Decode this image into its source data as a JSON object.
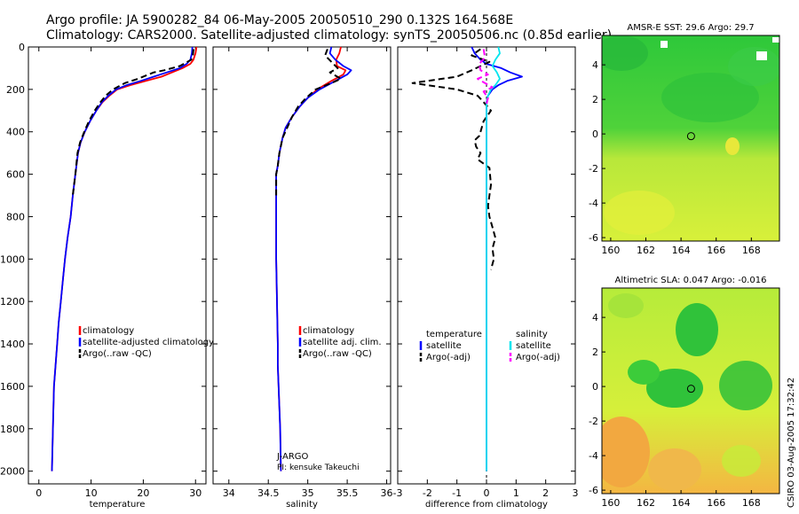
{
  "header": {
    "line1": "Argo profile: JA 5900282_84 06-May-2005 20050510_290 0.132S 164.568E",
    "line2": "Climatology: CARS2000. Satellite-adjusted climatology: synTS_20050506.nc (0.85d earlier)"
  },
  "colors": {
    "climatology": "#ff0000",
    "satellite": "#0000ff",
    "argo": "#000000",
    "salinity": "#00e5ee",
    "salinity_argo": "#ff00ff"
  },
  "footer_stamp": "CSIRO 03-Aug-2005 17:32:42",
  "chart_data": [
    {
      "type": "line",
      "id": "temperature",
      "xlabel": "temperature",
      "xlim": [
        -2,
        32
      ],
      "ylim": [
        2060,
        0
      ],
      "xticks": [
        0,
        10,
        20,
        30
      ],
      "yticks": [
        0,
        200,
        400,
        600,
        800,
        1000,
        1200,
        1400,
        1600,
        1800,
        2000
      ],
      "legend": [
        "climatology",
        "satellite-adjusted climatology",
        "Argo(..raw  -QC)"
      ],
      "series": [
        {
          "name": "climatology",
          "color": "#ff0000",
          "dash": false,
          "x": [
            30.2,
            30.0,
            29.6,
            29.0,
            27.5,
            25.5,
            23.5,
            20.5,
            17.5,
            15.0,
            13.5,
            12.2,
            11.0,
            9.8,
            8.8,
            8.0,
            7.5,
            7.0,
            6.5,
            6.1,
            5.5,
            5.0,
            4.6,
            4.2,
            3.8,
            3.5,
            3.2,
            2.9,
            2.7,
            2.5
          ],
          "y": [
            0,
            30,
            60,
            80,
            100,
            120,
            140,
            160,
            180,
            200,
            230,
            260,
            300,
            350,
            400,
            450,
            500,
            600,
            700,
            800,
            900,
            1000,
            1100,
            1200,
            1300,
            1400,
            1500,
            1600,
            1800,
            2000
          ]
        },
        {
          "name": "satellite-adjusted climatology",
          "color": "#0000ff",
          "dash": false,
          "x": [
            29.4,
            29.3,
            29.0,
            28.3,
            27.0,
            24.5,
            22.0,
            19.5,
            16.8,
            14.8,
            13.3,
            12.1,
            11.0,
            9.8,
            8.8,
            8.0,
            7.5,
            7.0,
            6.5,
            6.1,
            5.5,
            5.0,
            4.6,
            4.2,
            3.8,
            3.5,
            3.2,
            2.9,
            2.7,
            2.5
          ],
          "y": [
            0,
            30,
            60,
            80,
            100,
            120,
            140,
            160,
            180,
            200,
            230,
            260,
            300,
            350,
            400,
            450,
            500,
            600,
            700,
            800,
            900,
            1000,
            1100,
            1200,
            1300,
            1400,
            1500,
            1600,
            1800,
            2000
          ]
        },
        {
          "name": "Argo(..raw  -QC)",
          "color": "#000000",
          "dash": true,
          "x": [
            29.6,
            29.5,
            29.2,
            27.0,
            24.0,
            22.0,
            21.0,
            19.0,
            16.5,
            14.2,
            12.8,
            11.8,
            10.7,
            9.6,
            8.7,
            7.9,
            7.4,
            7.0,
            6.5
          ],
          "y": [
            10,
            40,
            60,
            90,
            110,
            120,
            130,
            150,
            170,
            200,
            230,
            260,
            300,
            350,
            400,
            450,
            500,
            600,
            700
          ]
        }
      ]
    },
    {
      "type": "line",
      "id": "salinity",
      "xlabel": "salinity",
      "xlim": [
        33.8,
        36.05
      ],
      "ylim": [
        2060,
        0
      ],
      "xticks": [
        34,
        34.5,
        35,
        35.5,
        36
      ],
      "legend": [
        "climatology",
        "satellite adj. clim.",
        "Argo(..raw  -QC)"
      ],
      "annotation": [
        "J-ARGO",
        "PI: kensuke Takeuchi"
      ],
      "series": [
        {
          "name": "climatology",
          "color": "#ff0000",
          "dash": false,
          "x": [
            35.42,
            35.4,
            35.36,
            35.37,
            35.48,
            35.45,
            35.3,
            35.12,
            35.0,
            34.9,
            34.8,
            34.72,
            34.68,
            34.64,
            34.62,
            34.6,
            34.6,
            34.6,
            34.6,
            34.6,
            34.61,
            34.62,
            34.62,
            34.63,
            34.64,
            34.65,
            34.66
          ],
          "y": [
            0,
            30,
            60,
            90,
            110,
            130,
            160,
            200,
            240,
            280,
            330,
            380,
            430,
            500,
            560,
            600,
            700,
            800,
            900,
            1000,
            1200,
            1400,
            1500,
            1600,
            1700,
            1800,
            2000
          ]
        },
        {
          "name": "satellite adj. clim.",
          "color": "#0000ff",
          "dash": false,
          "x": [
            35.3,
            35.28,
            35.35,
            35.45,
            35.55,
            35.5,
            35.35,
            35.15,
            35.0,
            34.9,
            34.8,
            34.72,
            34.68,
            34.64,
            34.62,
            34.6,
            34.6,
            34.6,
            34.6,
            34.6,
            34.61,
            34.62,
            34.62,
            34.63,
            34.64,
            34.65,
            34.66
          ],
          "y": [
            0,
            30,
            60,
            90,
            110,
            130,
            160,
            200,
            240,
            280,
            330,
            380,
            430,
            500,
            560,
            600,
            700,
            800,
            900,
            1000,
            1200,
            1400,
            1500,
            1600,
            1700,
            1800,
            2000
          ]
        },
        {
          "name": "Argo(..raw  -QC)",
          "color": "#000000",
          "dash": true,
          "x": [
            35.25,
            35.22,
            35.3,
            35.38,
            35.28,
            35.42,
            35.3,
            35.1,
            34.98,
            34.88,
            34.8,
            34.74,
            34.68,
            34.64,
            34.62,
            34.6,
            34.6
          ],
          "y": [
            10,
            40,
            70,
            100,
            120,
            150,
            170,
            200,
            240,
            280,
            330,
            380,
            430,
            500,
            560,
            600,
            700
          ]
        }
      ]
    },
    {
      "type": "line",
      "id": "difference",
      "xlabel": "difference from climatology",
      "xlim": [
        -3,
        3
      ],
      "ylim": [
        2060,
        0
      ],
      "xticks": [
        -3,
        -2,
        -1,
        0,
        1,
        2,
        3
      ],
      "legend_left": [
        "temperature",
        "satellite",
        "Argo(-adj)"
      ],
      "legend_right": [
        "salinity",
        "satellite",
        "Argo(-adj)"
      ],
      "series": [
        {
          "name": "temperature satellite",
          "color": "#0000ff",
          "dash": false,
          "x": [
            -0.5,
            -0.4,
            -0.2,
            0,
            0.5,
            0.8,
            1.2,
            0.7,
            0.4,
            0.2,
            0.05,
            0,
            0,
            0,
            0,
            0,
            0,
            0,
            0,
            0,
            0
          ],
          "y": [
            0,
            30,
            60,
            80,
            100,
            120,
            140,
            160,
            180,
            200,
            230,
            260,
            300,
            400,
            500,
            700,
            900,
            1200,
            1500,
            1800,
            2000
          ]
        },
        {
          "name": "temperature Argo(-adj)",
          "color": "#000000",
          "dash": true,
          "x": [
            -0.2,
            -0.5,
            0.1,
            -0.5,
            -1.0,
            -1.5,
            -2.0,
            -2.5,
            -1.0,
            -0.3,
            -0.1,
            0.15,
            -0.1,
            -0.2,
            -0.25,
            -0.4,
            -0.35,
            -0.2,
            -0.3,
            0.1,
            0.15,
            0.1,
            0.05,
            0.1,
            0.2,
            0.3,
            0.2,
            0.25,
            0.15
          ],
          "y": [
            10,
            40,
            70,
            110,
            140,
            150,
            160,
            170,
            200,
            230,
            260,
            300,
            350,
            400,
            420,
            440,
            470,
            500,
            530,
            570,
            650,
            700,
            750,
            800,
            850,
            900,
            950,
            1000,
            1050
          ]
        },
        {
          "name": "salinity satellite",
          "color": "#00e5ee",
          "dash": false,
          "x": [
            0.4,
            0.45,
            0.3,
            0.2,
            0.35,
            0.45,
            0.3,
            0.15,
            0.05,
            0,
            0,
            0,
            0,
            0,
            0,
            0,
            0,
            0
          ],
          "y": [
            0,
            30,
            60,
            90,
            120,
            150,
            180,
            200,
            230,
            260,
            300,
            400,
            600,
            800,
            1000,
            1400,
            1800,
            2000
          ]
        },
        {
          "name": "salinity Argo(-adj)",
          "color": "#ff00ff",
          "dash": true,
          "x": [
            -0.1,
            -0.05,
            -0.25,
            -0.2,
            0.05,
            -0.3,
            -0.05,
            0.2,
            -0.1,
            0.05,
            0
          ],
          "y": [
            10,
            50,
            80,
            110,
            130,
            150,
            170,
            190,
            210,
            240,
            270
          ]
        }
      ]
    },
    {
      "type": "heatmap",
      "id": "sst-map",
      "title": "AMSR-E SST: 29.6  Argo: 29.7",
      "xlim": [
        159.5,
        169.6
      ],
      "ylim": [
        -6.2,
        5.7
      ],
      "xticks": [
        160,
        162,
        164,
        166,
        168
      ],
      "yticks": [
        -6,
        -4,
        -2,
        0,
        2,
        4
      ],
      "marker": {
        "lon": 164.57,
        "lat": -0.13
      }
    },
    {
      "type": "heatmap",
      "id": "sla-map",
      "title": "Altimetric SLA: 0.047  Argo: -0.016",
      "xlim": [
        159.5,
        169.6
      ],
      "ylim": [
        -6.2,
        5.7
      ],
      "xticks": [
        160,
        162,
        164,
        166,
        168
      ],
      "yticks": [
        -6,
        -4,
        -2,
        0,
        2,
        4
      ],
      "marker": {
        "lon": 164.57,
        "lat": -0.13
      }
    }
  ]
}
